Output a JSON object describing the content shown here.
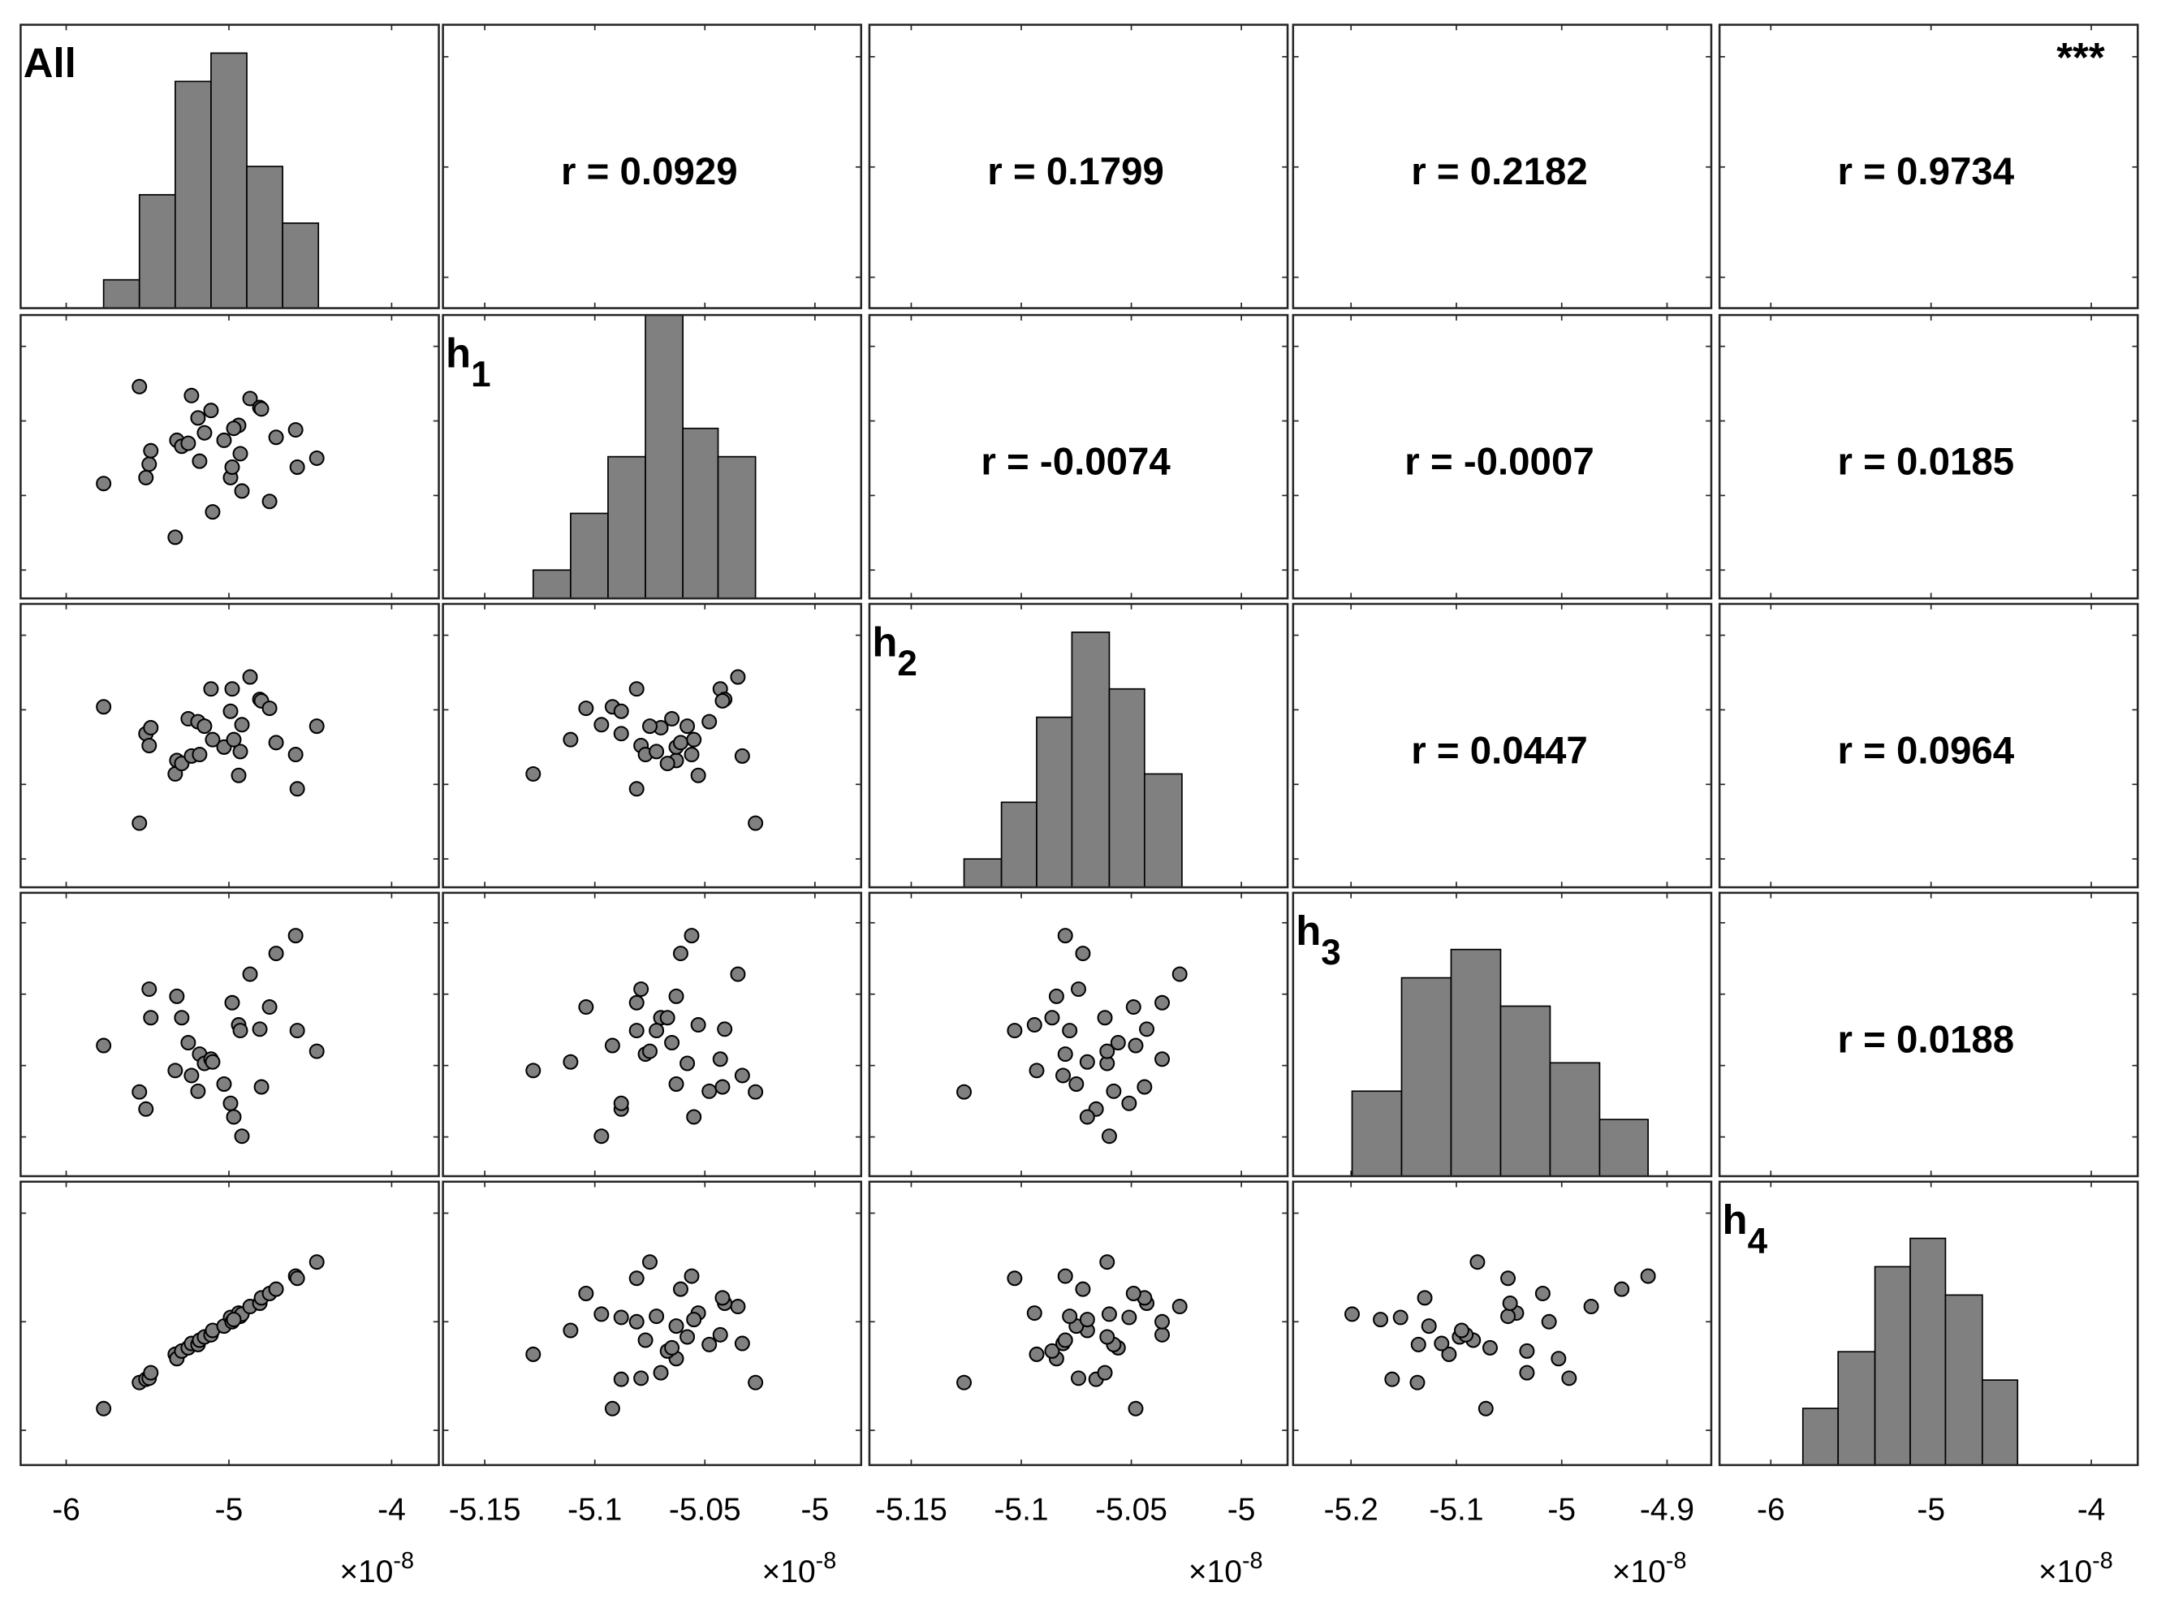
{
  "chart_data": {
    "type": "scatter_matrix",
    "variables": [
      {
        "name": "All",
        "values": [
          -5.77,
          -5.55,
          -5.51,
          -5.49,
          -5.48,
          -5.33,
          -5.32,
          -5.29,
          -5.25,
          -5.23,
          -5.19,
          -5.18,
          -5.15,
          -5.11,
          -5.1,
          -5.03,
          -4.99,
          -4.98,
          -4.94,
          -4.93,
          -4.92,
          -4.87,
          -4.81,
          -4.8,
          -4.75,
          -4.71,
          -4.59,
          -4.58,
          -4.46,
          -4.97
        ],
        "xlim": [
          -6.28,
          -3.71
        ],
        "xticks": [
          -6,
          -5,
          -4
        ],
        "hist": {
          "bins": [
            -5.77,
            -5.55,
            -5.33,
            -5.11,
            -4.89,
            -4.67,
            -4.45
          ],
          "counts": [
            1,
            4,
            8,
            9,
            5,
            3
          ]
        }
      },
      {
        "name": "h",
        "subscript": "1",
        "values": [
          -5.092,
          -5.027,
          -5.088,
          -5.079,
          -5.07,
          -5.128,
          -5.063,
          -5.067,
          -5.065,
          -5.033,
          -5.048,
          -5.077,
          -5.058,
          -5.043,
          -5.111,
          -5.063,
          -5.088,
          -5.081,
          -5.053,
          -5.072,
          -5.097,
          -5.035,
          -5.041,
          -5.042,
          -5.104,
          -5.061,
          -5.056,
          -5.081,
          -5.075,
          -5.055
        ],
        "xlim": [
          -5.169,
          -4.979
        ],
        "xticks": [
          -5.15,
          -5.1,
          -5.05,
          -5
        ],
        "hist": {
          "bins": [
            -5.128,
            -5.111,
            -5.094,
            -5.077,
            -5.06,
            -5.044,
            -5.027
          ],
          "counts": [
            1,
            3,
            5,
            10,
            6,
            5
          ]
        }
      },
      {
        "name": "h",
        "subscript": "2",
        "values": [
          -5.048,
          -5.126,
          -5.066,
          -5.074,
          -5.062,
          -5.093,
          -5.084,
          -5.086,
          -5.056,
          -5.081,
          -5.058,
          -5.08,
          -5.061,
          -5.036,
          -5.07,
          -5.075,
          -5.051,
          -5.036,
          -5.094,
          -5.078,
          -5.06,
          -5.028,
          -5.043,
          -5.044,
          -5.049,
          -5.072,
          -5.08,
          -5.103,
          -5.061,
          -5.07
        ],
        "xlim": [
          -5.169,
          -4.979
        ],
        "xticks": [
          -5.15,
          -5.1,
          -5.05,
          -5
        ],
        "hist": {
          "bins": [
            -5.126,
            -5.109,
            -5.093,
            -5.077,
            -5.06,
            -5.044,
            -5.027
          ],
          "counts": [
            1,
            3,
            6,
            9,
            7,
            4
          ]
        }
      },
      {
        "name": "h",
        "subscript": "3",
        "values": [
          -5.072,
          -5.137,
          -5.161,
          -4.993,
          -5.033,
          -5.107,
          -5.003,
          -5.033,
          -5.068,
          -5.114,
          -5.136,
          -5.084,
          -5.097,
          -5.091,
          -5.095,
          -5.126,
          -5.153,
          -5.012,
          -5.043,
          -5.051,
          -5.199,
          -4.972,
          -5.049,
          -5.13,
          -5.018,
          -4.943,
          -4.918,
          -5.051,
          -5.08,
          -5.172
        ],
        "xlim": [
          -5.255,
          -4.858
        ],
        "xticks": [
          -5.2,
          -5.1,
          -5,
          -4.9
        ],
        "hist": {
          "bins": [
            -5.199,
            -5.152,
            -5.105,
            -5.058,
            -5.011,
            -4.964,
            -4.918
          ],
          "counts": [
            3,
            7,
            8,
            6,
            4,
            2
          ]
        }
      },
      {
        "name": "h",
        "subscript": "4",
        "values": [
          -5.8,
          -5.56,
          -5.53,
          -5.52,
          -5.47,
          -5.3,
          -5.34,
          -5.27,
          -5.24,
          -5.2,
          -5.21,
          -5.17,
          -5.14,
          -5.12,
          -5.08,
          -5.04,
          -4.96,
          -5.0,
          -4.92,
          -4.95,
          -4.93,
          -4.86,
          -4.83,
          -4.78,
          -4.74,
          -4.7,
          -4.58,
          -4.6,
          -4.45,
          -4.98
        ],
        "xlim": [
          -6.32,
          -3.71
        ],
        "xticks": [
          -6,
          -5,
          -4
        ],
        "hist": {
          "bins": [
            -5.8,
            -5.58,
            -5.35,
            -5.13,
            -4.91,
            -4.68,
            -4.46
          ],
          "counts": [
            2,
            4,
            7,
            8,
            6,
            3
          ]
        }
      }
    ],
    "hist_ylim": [
      0,
      10
    ],
    "r_values": [
      [
        0.0929,
        0.1799,
        0.2182,
        0.9734
      ],
      [
        -0.0074,
        -0.0007,
        0.0185
      ],
      [
        0.0447,
        0.0964
      ],
      [
        0.0188
      ]
    ],
    "r_labels": [
      [
        "r = 0.0929",
        "r = 0.1799",
        "r = 0.2182",
        "r = 0.9734"
      ],
      [
        "r = -0.0074",
        "r = -0.0007",
        "r = 0.0185"
      ],
      [
        "r = 0.0447",
        "r = 0.0964"
      ],
      [
        "r = 0.0188"
      ]
    ],
    "significance_label": "***",
    "axis_multiplier": {
      "base": "×10",
      "exponent": "-8"
    },
    "marker_color": "#808080",
    "bar_color": "#808080"
  }
}
